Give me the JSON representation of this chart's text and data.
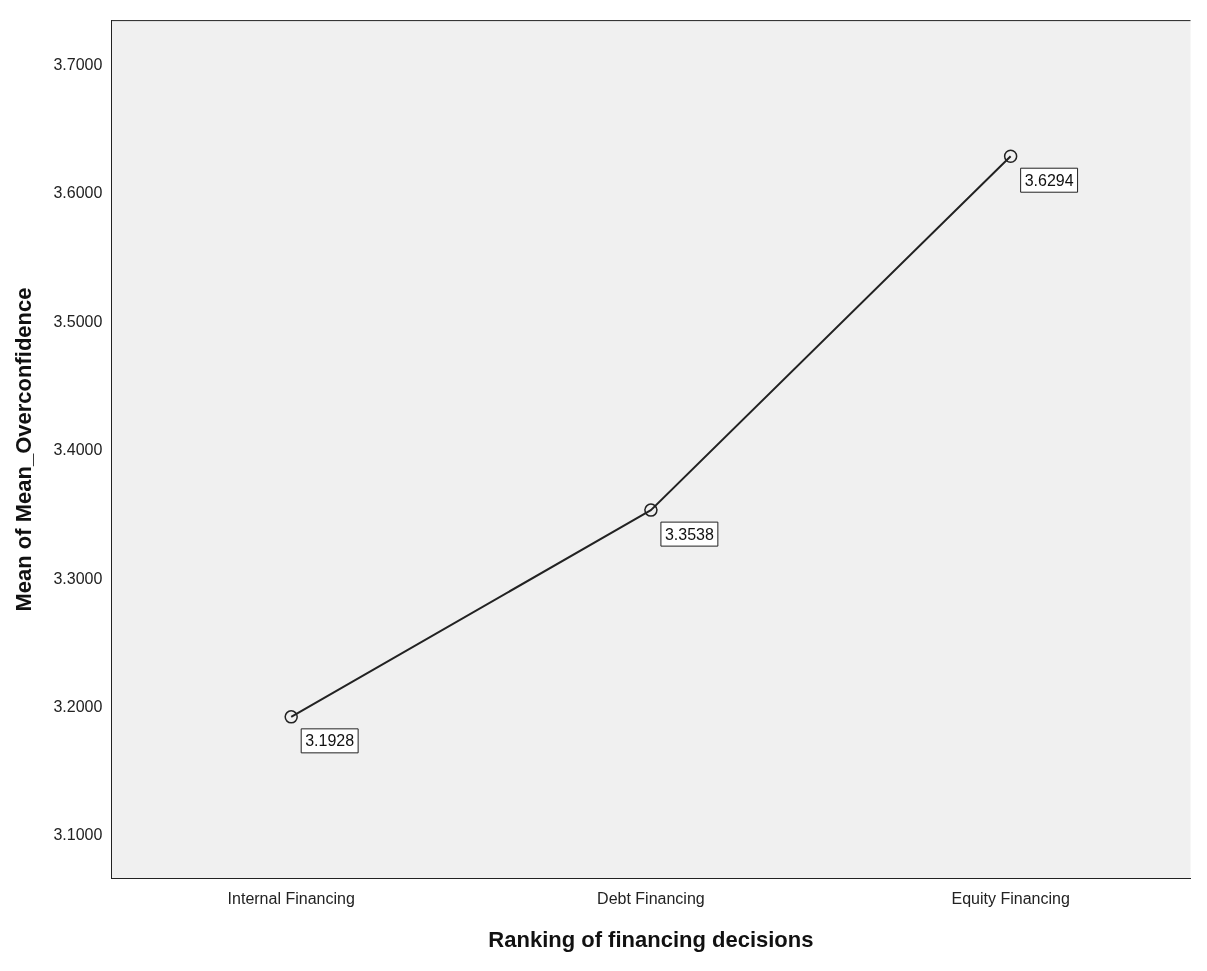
{
  "chart_data": {
    "type": "line",
    "xlabel": "Ranking of financing decisions",
    "ylabel": "Mean of Mean_Overconfidence",
    "categories": [
      "Internal Financing",
      "Debt Financing",
      "Equity Financing"
    ],
    "series": [
      {
        "color": "#222222",
        "values": [
          3.1928,
          3.3538,
          3.6294
        ]
      }
    ],
    "ylim": [
      3.067,
      3.735
    ],
    "yticks": [
      {
        "value": 3.1,
        "label": "3.1000"
      },
      {
        "value": 3.2,
        "label": "3.2000"
      },
      {
        "value": 3.3,
        "label": "3.3000"
      },
      {
        "value": 3.4,
        "label": "3.4000"
      },
      {
        "value": 3.5,
        "label": "3.5000"
      },
      {
        "value": 3.6,
        "label": "3.6000"
      },
      {
        "value": 3.7,
        "label": "3.7000"
      }
    ],
    "marker": "circle",
    "line_style": "solid",
    "data_labels": true,
    "grid": false,
    "legend": false
  }
}
